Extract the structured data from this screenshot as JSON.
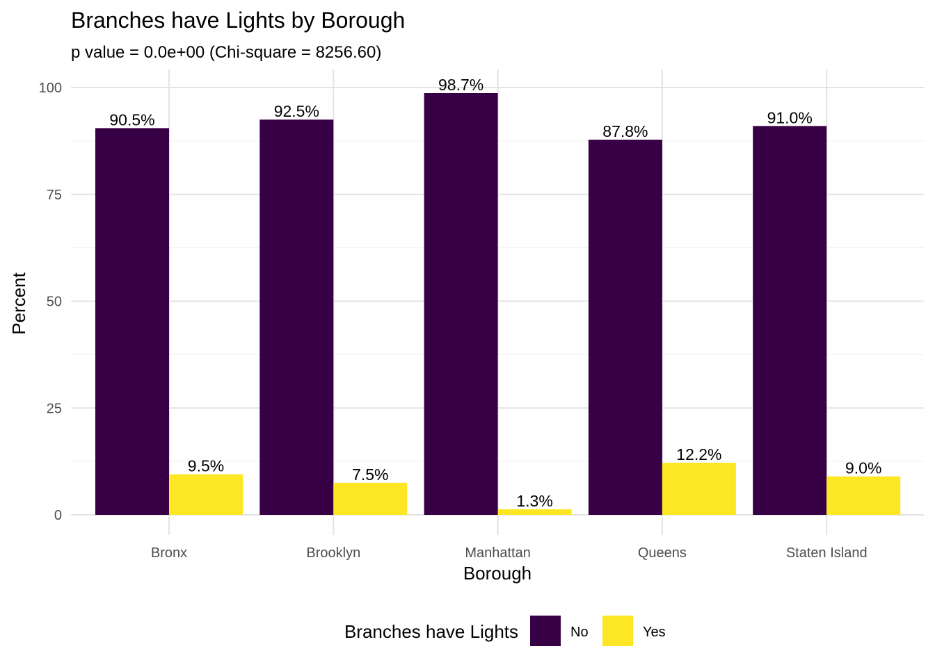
{
  "chart_data": {
    "type": "bar",
    "title": "Branches have Lights by Borough",
    "subtitle": "p value = 0.0e+00 (Chi-square = 8256.60)",
    "xlabel": "Borough",
    "ylabel": "Percent",
    "categories": [
      "Bronx",
      "Brooklyn",
      "Manhattan",
      "Queens",
      "Staten Island"
    ],
    "series": [
      {
        "name": "No",
        "color": "#380044",
        "values": [
          90.5,
          92.5,
          98.7,
          87.8,
          91.0
        ],
        "labels": [
          "90.5%",
          "92.5%",
          "98.7%",
          "87.8%",
          "91.0%"
        ]
      },
      {
        "name": "Yes",
        "color": "#FDE725",
        "values": [
          9.5,
          7.5,
          1.3,
          12.2,
          9.0
        ],
        "labels": [
          "9.5%",
          "7.5%",
          "1.3%",
          "12.2%",
          "9.0%"
        ]
      }
    ],
    "ylim": [
      0,
      100
    ],
    "yticks": [
      0,
      25,
      50,
      75,
      100
    ],
    "grid": true,
    "legend": {
      "title": "Branches have Lights",
      "position": "bottom"
    }
  }
}
